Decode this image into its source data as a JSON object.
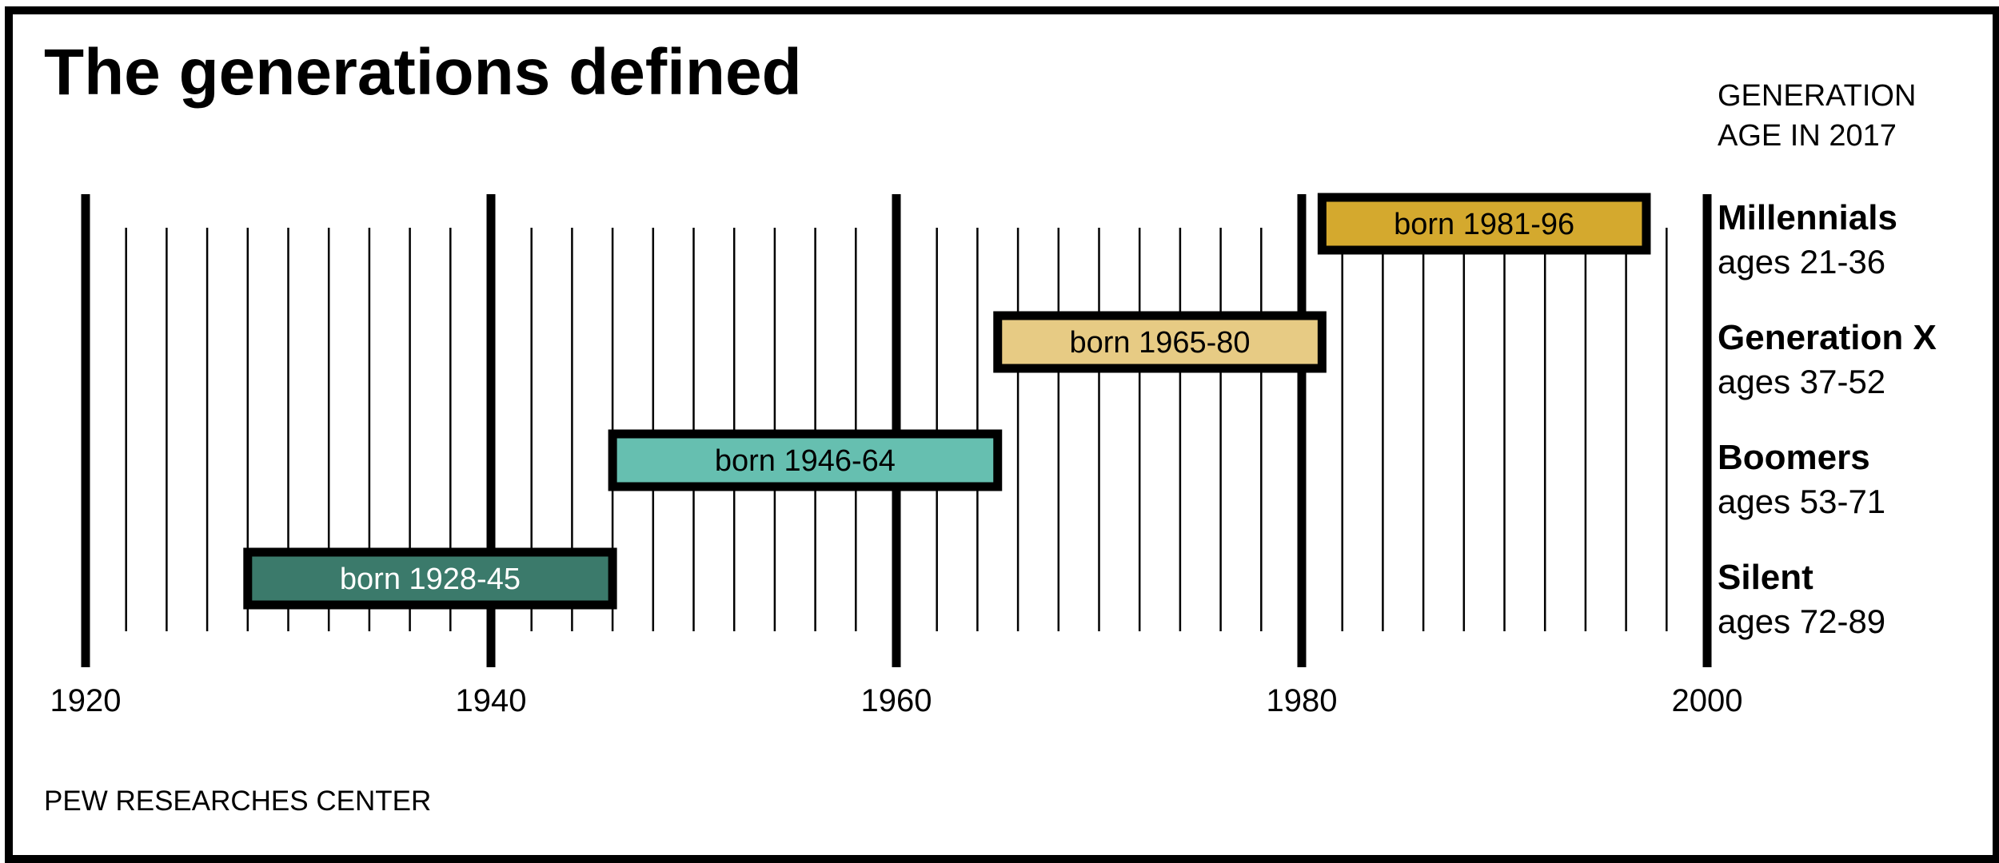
{
  "chart_data": {
    "type": "bar",
    "orientation": "horizontal-range",
    "title": "The generations defined",
    "header": [
      "GENERATION",
      "AGE IN 2017"
    ],
    "xlim": [
      1920,
      2000
    ],
    "x_ticks": [
      "1920",
      "1940",
      "1960",
      "1980",
      "2000"
    ],
    "minor_tick_step": 2,
    "series": [
      {
        "name": "Millennials",
        "ages": "ages 21-36",
        "label": "born 1981-96",
        "start": 1981,
        "end": 1996,
        "color": "#D4A92E",
        "text_color": "#000000"
      },
      {
        "name": "Generation X",
        "ages": "ages 37-52",
        "label": "born 1965-80",
        "start": 1965,
        "end": 1980,
        "color": "#E7CB84",
        "text_color": "#000000"
      },
      {
        "name": "Boomers",
        "ages": "ages 53-71",
        "label": "born 1946-64",
        "start": 1946,
        "end": 1964,
        "color": "#66BFB0",
        "text_color": "#000000"
      },
      {
        "name": "Silent",
        "ages": "ages 72-89",
        "label": "born 1928-45",
        "start": 1928,
        "end": 1945,
        "color": "#3B7A6B",
        "text_color": "#ffffff"
      }
    ],
    "source": "PEW RESEARCHES CENTER"
  }
}
